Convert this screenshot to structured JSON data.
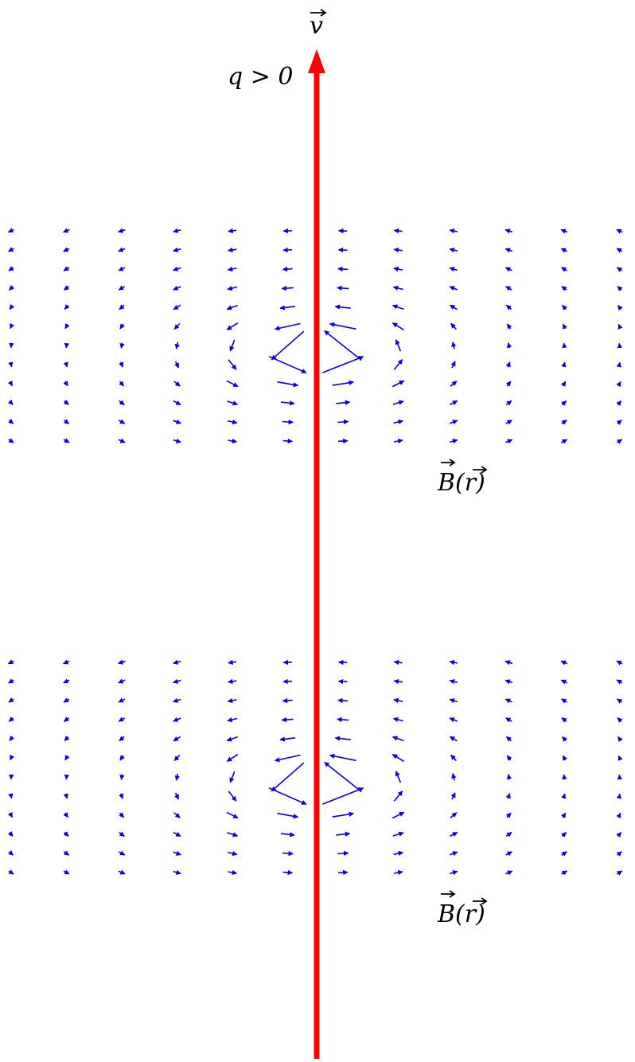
{
  "labels": {
    "velocity_vector": "v",
    "charge_condition": "q > 0",
    "field_label_top": "B(r)",
    "field_label_bottom": "B(r)"
  },
  "colors": {
    "velocity": "#ff0000",
    "field": "#0000e0",
    "text": "#000000"
  },
  "field_grid": {
    "columns": 12,
    "rows": 12,
    "panels": 2
  }
}
